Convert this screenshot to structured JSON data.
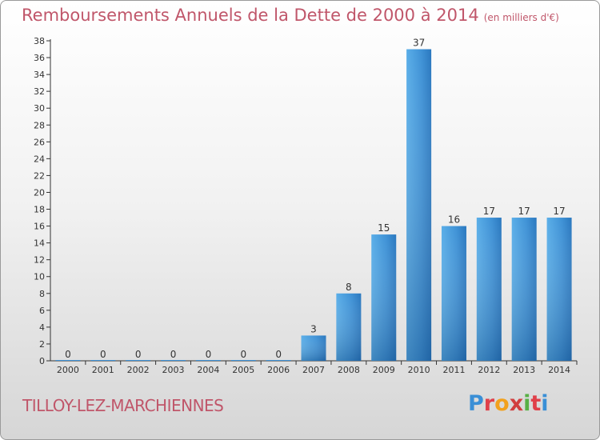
{
  "title": "Remboursements Annuels de la Dette de 2000 à 2014",
  "unit": "(en milliers d'€)",
  "commune": "TILLOY-LEZ-MARCHIENNES",
  "logo": {
    "text": "Proxiti",
    "letters": [
      {
        "ch": "P",
        "color": "#3a8fd6"
      },
      {
        "ch": "r",
        "color": "#e0404a"
      },
      {
        "ch": "o",
        "color": "#f2a11d"
      },
      {
        "ch": "x",
        "color": "#d13f3f"
      },
      {
        "ch": "i",
        "color": "#58b046"
      },
      {
        "ch": "t",
        "color": "#e0404a"
      },
      {
        "ch": "i",
        "color": "#3a8fd6"
      }
    ]
  },
  "colors": {
    "bar": "#3f92d6",
    "title": "#c0566a",
    "axis": "#333333"
  },
  "chart_data": {
    "type": "bar",
    "title": "Remboursements Annuels de la Dette de 2000 à 2014",
    "ylabel": "(en milliers d'€)",
    "xlabel": "",
    "categories": [
      "2000",
      "2001",
      "2002",
      "2003",
      "2004",
      "2005",
      "2006",
      "2007",
      "2008",
      "2009",
      "2010",
      "2011",
      "2012",
      "2013",
      "2014"
    ],
    "values": [
      0,
      0,
      0,
      0,
      0,
      0,
      0,
      3,
      8,
      15,
      37,
      16,
      17,
      17,
      17
    ],
    "ylim": [
      0,
      38
    ],
    "yticks": [
      0,
      2,
      4,
      6,
      8,
      10,
      12,
      14,
      16,
      18,
      20,
      22,
      24,
      26,
      28,
      30,
      32,
      34,
      36,
      38
    ],
    "grid": false,
    "data_labels": true
  }
}
